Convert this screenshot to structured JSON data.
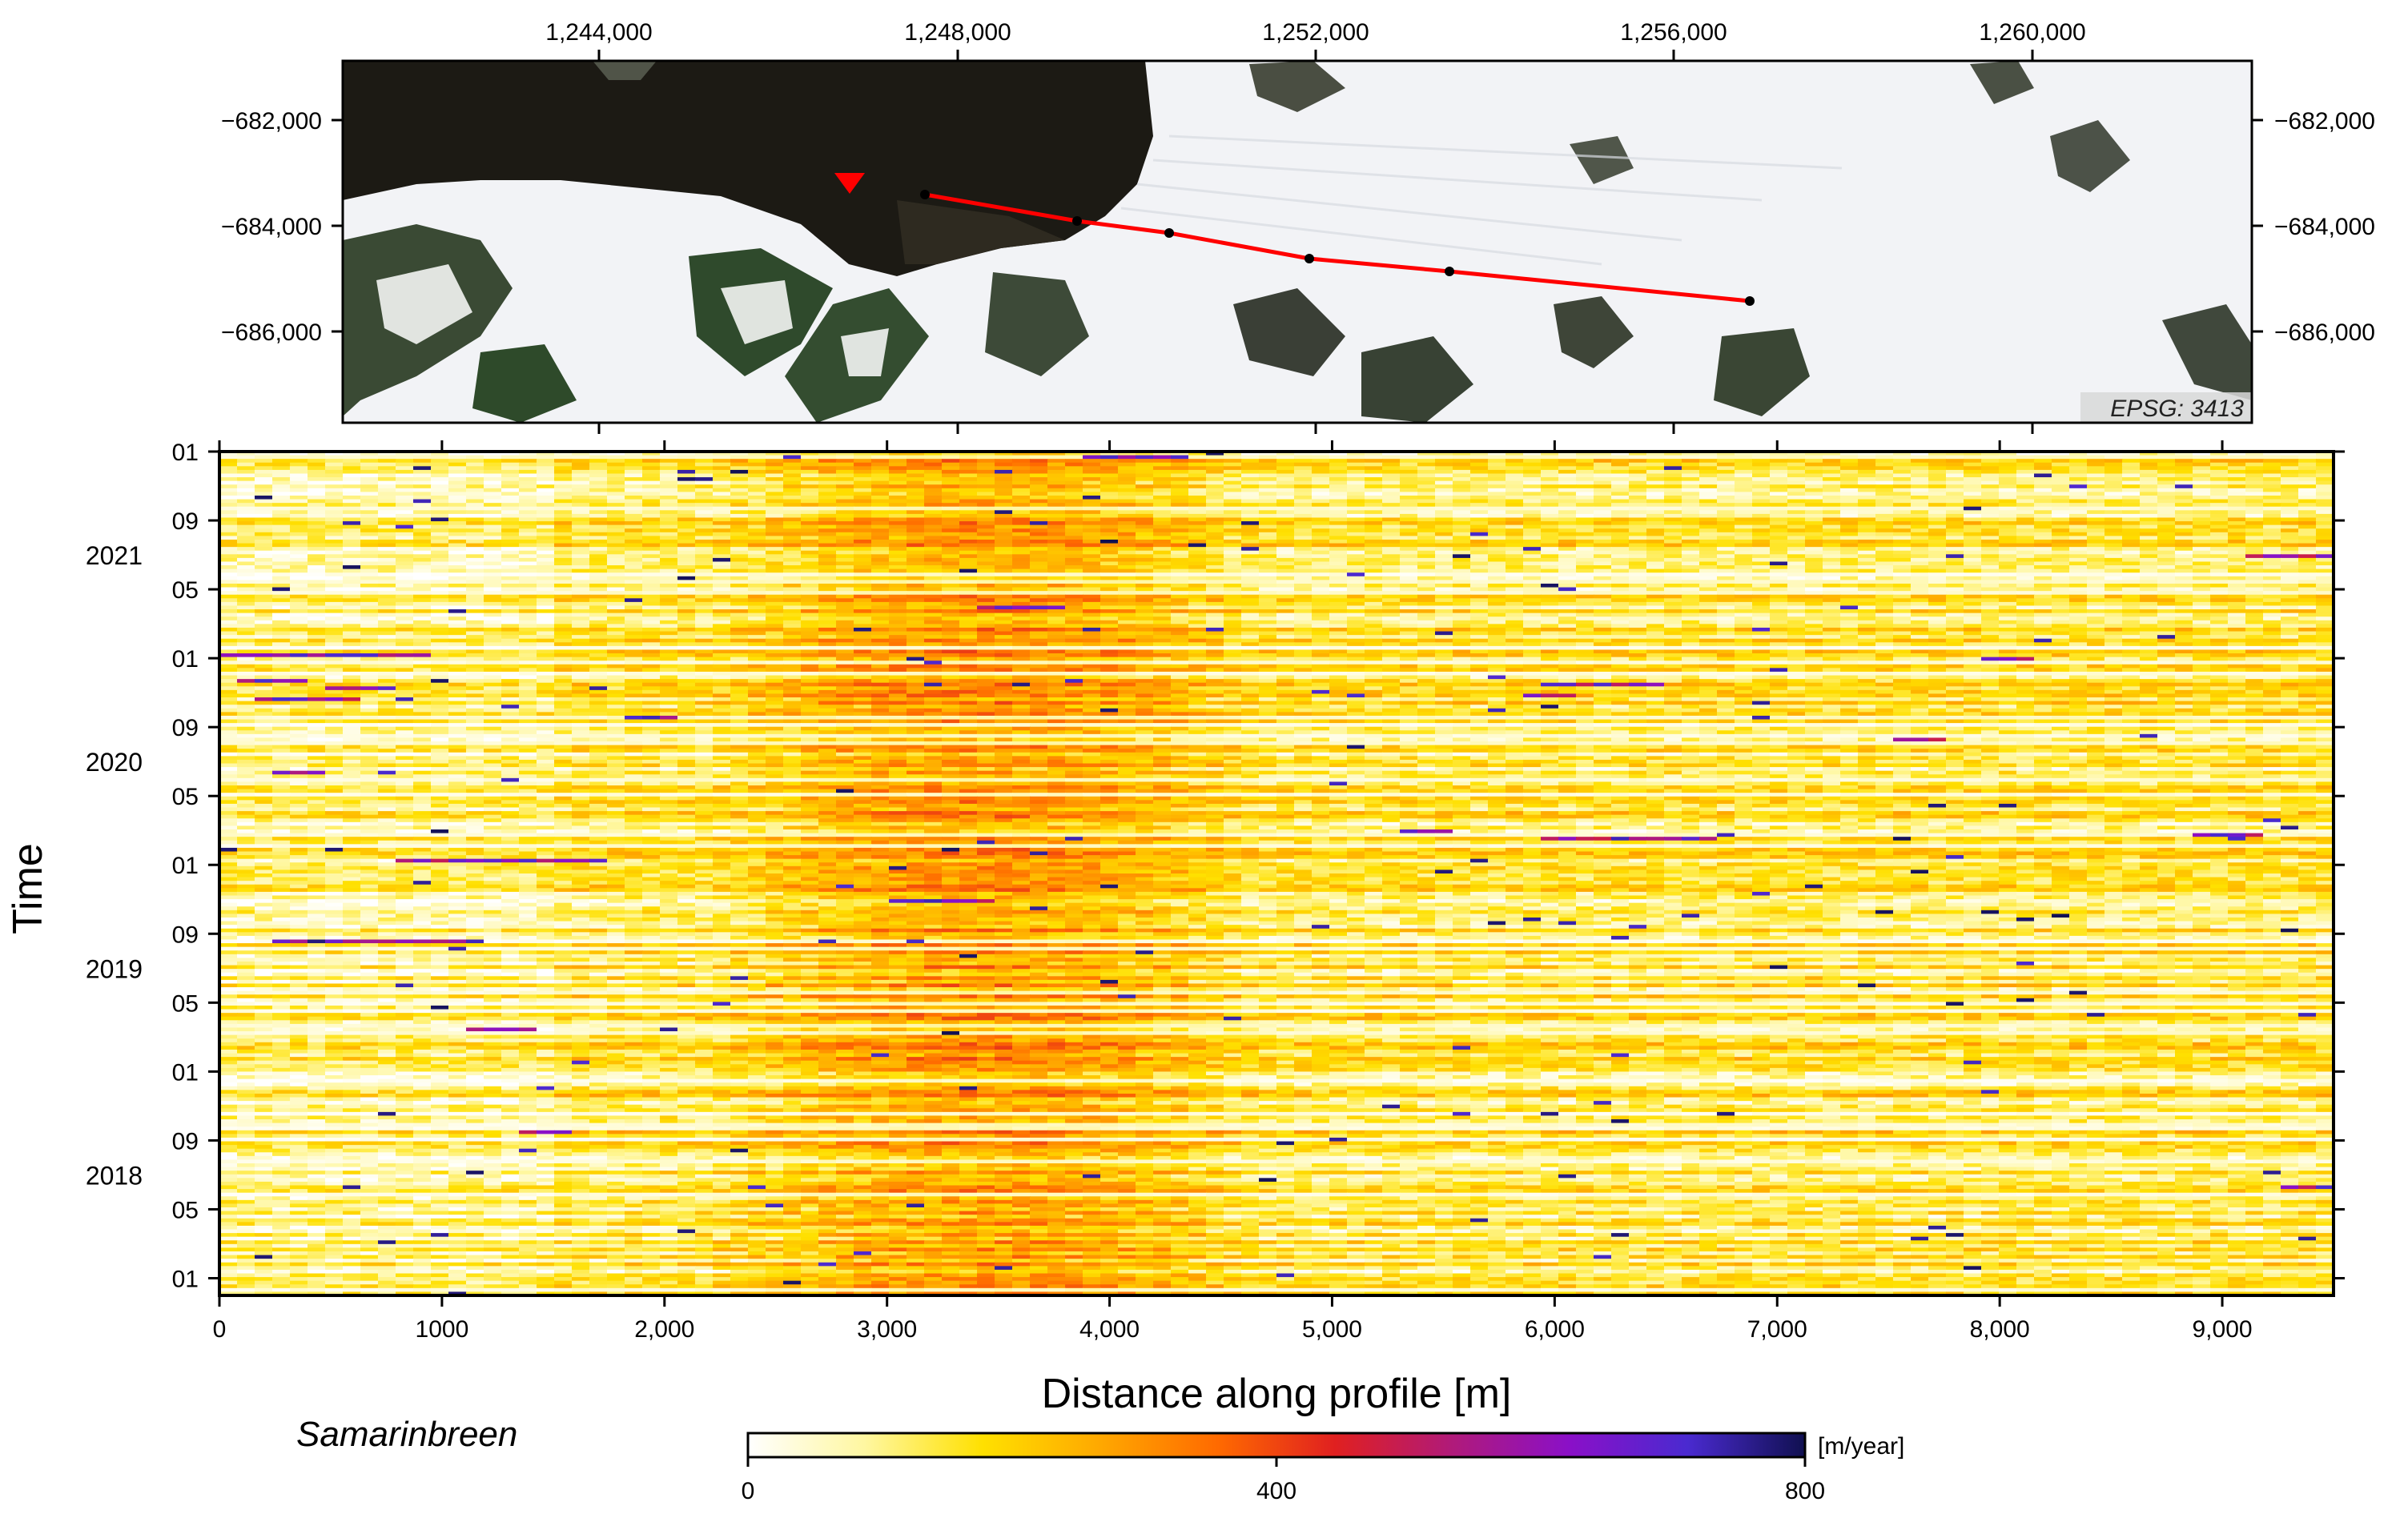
{
  "map_panel": {
    "top_ticks": [
      "1,244,000",
      "1,248,000",
      "1,252,000",
      "1,256,000",
      "1,260,000"
    ],
    "left_ticks": [
      "−682,000",
      "−684,000",
      "−686,000"
    ],
    "right_ticks": [
      "−682,000",
      "−684,000",
      "−686,000"
    ],
    "epsg_label": "EPSG: 3413",
    "profile_color": "#ff0000"
  },
  "chart_data": {
    "type": "heatmap",
    "xlabel": "Distance along profile [m]",
    "ylabel": "Time",
    "xlim": [
      0,
      9500
    ],
    "x_ticks": [
      0,
      1000,
      2000,
      3000,
      4000,
      5000,
      6000,
      7000,
      8000,
      9000
    ],
    "x_tick_labels": [
      "0",
      "1000",
      "2,000",
      "3,000",
      "4,000",
      "5,000",
      "6,000",
      "7,000",
      "8,000",
      "9,000"
    ],
    "y_range": [
      "2017-12",
      "2022-01"
    ],
    "month_ticks": [
      {
        "date": "2018-01",
        "label": "01"
      },
      {
        "date": "2018-05",
        "label": "05"
      },
      {
        "date": "2018-09",
        "label": "09"
      },
      {
        "date": "2019-01",
        "label": "01"
      },
      {
        "date": "2019-05",
        "label": "05"
      },
      {
        "date": "2019-09",
        "label": "09"
      },
      {
        "date": "2020-01",
        "label": "01"
      },
      {
        "date": "2020-05",
        "label": "05"
      },
      {
        "date": "2020-09",
        "label": "09"
      },
      {
        "date": "2021-01",
        "label": "01"
      },
      {
        "date": "2021-05",
        "label": "05"
      },
      {
        "date": "2021-09",
        "label": "09"
      },
      {
        "date": "2022-01",
        "label": "01"
      }
    ],
    "year_labels": [
      {
        "date": "2018-07",
        "label": "2018"
      },
      {
        "date": "2019-07",
        "label": "2019"
      },
      {
        "date": "2020-07",
        "label": "2020"
      },
      {
        "date": "2021-07",
        "label": "2021"
      }
    ],
    "fast_zone_m": [
      2200,
      4700
    ],
    "colorbar": {
      "min": 0,
      "max": 800,
      "tick_values": [
        0,
        400,
        800
      ],
      "tick_labels": [
        "0",
        "400",
        "800"
      ],
      "unit": "[m/year]",
      "colors": [
        "#ffffff",
        "#fff7a0",
        "#ffe000",
        "#ffa800",
        "#ff6a00",
        "#e02020",
        "#b01a7a",
        "#8a10c8",
        "#4a2ad0",
        "#101050"
      ]
    }
  },
  "glacier_name": "Samarinbreen"
}
